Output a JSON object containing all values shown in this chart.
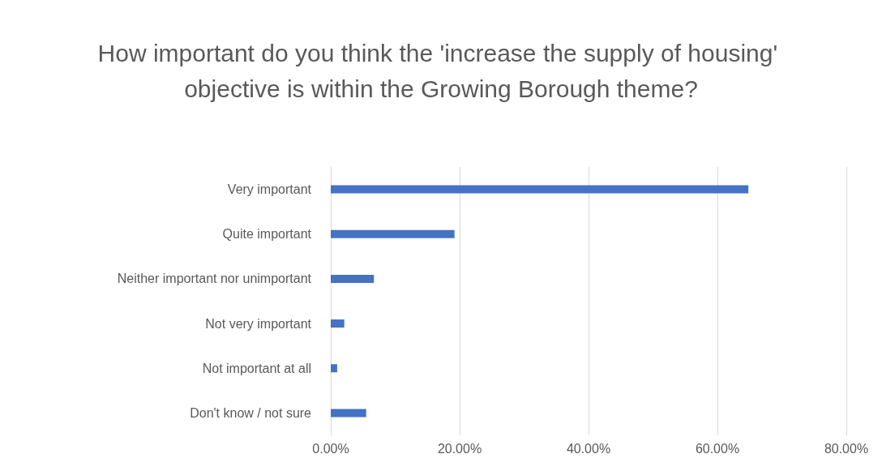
{
  "chart_data": {
    "type": "bar",
    "orientation": "horizontal",
    "title": "How important do you think the 'increase the supply of housing' objective is within the Growing Borough theme?",
    "categories": [
      "Very important",
      "Quite important",
      "Neither important nor unimportant",
      "Not very important",
      "Not important at all",
      "Don't know / not sure"
    ],
    "values": [
      64.8,
      19.2,
      6.7,
      2.1,
      1.0,
      5.5
    ],
    "color": "#4472c4",
    "xlim": [
      0,
      80
    ],
    "xticks": [
      {
        "value": 0,
        "label": "0.00%"
      },
      {
        "value": 20,
        "label": "20.00%"
      },
      {
        "value": 40,
        "label": "40.00%"
      },
      {
        "value": 60,
        "label": "60.00%"
      },
      {
        "value": 80,
        "label": "80.00%"
      }
    ],
    "grid": "x"
  }
}
